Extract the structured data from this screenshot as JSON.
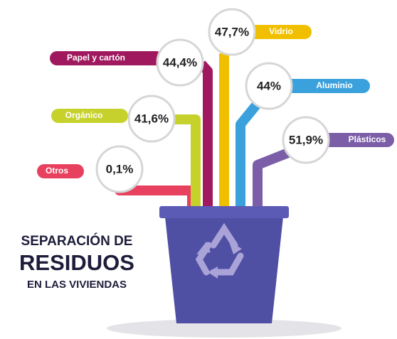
{
  "title": {
    "line1": "SEPARACIÓN DE",
    "line2": "RESIDUOS",
    "line3": "EN LAS VIVIENDAS"
  },
  "items": [
    {
      "label": "Otros",
      "value": "0,1%"
    },
    {
      "label": "Orgánico",
      "value": "41,6%"
    },
    {
      "label": "Papel y cartón",
      "value": "44,4%"
    },
    {
      "label": "Vidrio",
      "value": "47,7%"
    },
    {
      "label": "Aluminio",
      "value": "44%"
    },
    {
      "label": "Plásticos",
      "value": "51,9%"
    }
  ]
}
